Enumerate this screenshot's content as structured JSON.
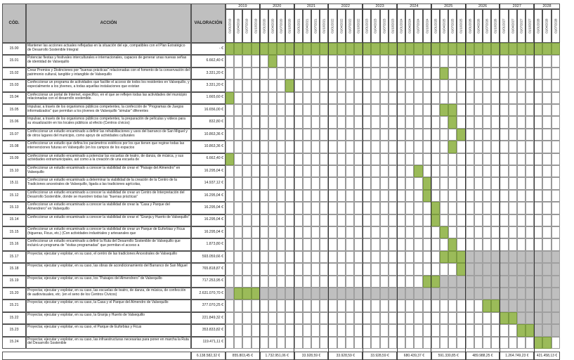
{
  "headers": {
    "code": "CÓD.",
    "action": "ACCIÓN",
    "valuation": "VALORACIÓN"
  },
  "years": [
    "2019",
    "2020",
    "2021",
    "2022",
    "2023",
    "2024",
    "2025",
    "2026",
    "2027",
    "2028"
  ],
  "dates": [
    "01/01/2019",
    "01/04/2019",
    "01/07/2019",
    "01/10/2019",
    "01/01/2020",
    "01/04/2020",
    "01/07/2020",
    "01/10/2020",
    "01/01/2021",
    "01/04/2021",
    "01/07/2021",
    "01/10/2021",
    "01/01/2022",
    "01/04/2022",
    "01/07/2022",
    "01/10/2022",
    "01/01/2023",
    "01/04/2023",
    "01/07/2023",
    "01/10/2023",
    "01/01/2024",
    "01/04/2024",
    "01/07/2024",
    "01/10/2024",
    "01/01/2025",
    "01/04/2025",
    "01/07/2025",
    "01/10/2025",
    "01/01/2026",
    "01/04/2026",
    "01/07/2026",
    "01/10/2026",
    "01/01/2027",
    "01/04/2027",
    "01/07/2027",
    "01/10/2027",
    "01/01/2028",
    "01/04/2028",
    "01/07/2028"
  ],
  "colors": {
    "green": "#9bbb59",
    "grey": "#bfbfbf",
    "header": "#bfbfbf"
  },
  "rows": [
    {
      "code": "15.00",
      "action": "Mantener las acciones actuales reflejadas en la situación del eje, compatibles con el Plan Estratégico de Desarrollo Sostenible Integral",
      "value": "- €",
      "green": [
        0,
        1,
        2,
        3,
        4,
        5,
        6,
        7,
        8,
        9,
        10,
        11,
        12,
        13,
        14,
        15,
        16,
        17,
        18,
        19,
        20,
        21,
        22,
        23,
        24,
        25,
        26,
        27,
        28,
        29,
        30,
        31,
        32,
        33,
        34,
        35,
        36,
        37,
        38
      ],
      "grey": []
    },
    {
      "code": "15.01",
      "action": "Potenciar fiestas y festivales interculturales e internacionales, capaces de generar unas nuevas señas de identidad de Valsequillo",
      "value": "6.662,40 €",
      "green": [
        5
      ],
      "grey": []
    },
    {
      "code": "15.02",
      "action": "Crear Premios y Distinciones por \"buenas prácticas\" relacionadas con el fomento de la conservación del patrimonio cultural, tangible y intangible de Valsequillo",
      "value": "3.331,20 €",
      "green": [
        25
      ],
      "grey": []
    },
    {
      "code": "15.03",
      "action": "Confeccionar un programa de actividades que facilite el acceso de todos los residentes en Valsequillo, y especialmente a los jóvenes, a todas aquellas instalaciones que existan",
      "value": "3.331,20 €",
      "green": [
        7
      ],
      "grey": []
    },
    {
      "code": "15.04",
      "action": "Confeccionar un portal de Internet, específico, en el que se reflejen todas las actividades del municipio relacionadas con el desarrollo sostenible.",
      "value": "1.665,60 €",
      "green": [
        0
      ],
      "grey": []
    },
    {
      "code": "15.05",
      "action": "Impulsar, a través de los organismos públicos competentes, la confección de \"Programas de Juegos informatizados\" que permitan a los jóvenes de Valsequillo \"simular\" diferentes",
      "value": "16.656,00 €",
      "green": [
        25,
        26
      ],
      "grey": []
    },
    {
      "code": "15.06",
      "action": "Impulsar, a través de los organismos públicos competentes, la preparación de películas y videos para su visualización en los locales públicos al efecto (Centros cívicos)",
      "value": "832,80 €",
      "green": [
        26
      ],
      "grey": []
    },
    {
      "code": "15.07",
      "action": "Confeccionar un estudio encaminado a definir las rehabilitaciones y usos del barranco de San Miguel y de otros lugares del municipio, como apoyo de actividades culturales",
      "value": "10.863,36 €",
      "green": [
        27
      ],
      "grey": []
    },
    {
      "code": "15.08",
      "action": "Confeccionar un estudio que defina los parámetros estéticos por los que tienen que regirse todas las intervenciones futuras en Valsequillo (en los campos de los espacios",
      "value": "10.863,36 €",
      "green": [
        26
      ],
      "grey": []
    },
    {
      "code": "15.09",
      "action": "Confeccionar un estudio encaminado a potenciar las escuelas de teatro, de danza, de música, y sus actividades extramunicipales, así como a la creación de una escuela de",
      "value": "6.662,40 €",
      "green": [
        0
      ],
      "grey": []
    },
    {
      "code": "15.10",
      "action": "Confeccionar un estudio encaminado a conocer la viabilidad de crear el \"Paisaje del Almendro\" en Valsequillo",
      "value": "16.295,04 €",
      "green": [
        22
      ],
      "grey": []
    },
    {
      "code": "15.11",
      "action": "Confeccionar un estudio encaminado a determinar la viabilidad de la creación de la Centro de la Tradiciones ancestrales de Valsequillo, ligada a las tradiciones agrícolas,",
      "value": "14.937,12 €",
      "green": [
        23
      ],
      "grey": []
    },
    {
      "code": "15.12",
      "action": "Confeccionar un estudio encaminado a conocer la viabilidad de crear un Centro de Interpretación del Desarrollo Sostenible, donde se muestren todas las \"buenas prácticas\"",
      "value": "16.295,04 €",
      "green": [
        23
      ],
      "grey": []
    },
    {
      "code": "15.13",
      "action": "Confeccionar un estudio encaminado a conocer la viabilidad de crear la \"Casa y Parque del Almendrero\" en Valsequillo",
      "value": "16.295,04 €",
      "green": [
        24
      ],
      "grey": []
    },
    {
      "code": "15.14",
      "action": "Confeccionar un estudio encaminado a conocer la viabilidad de crear el \"Granja y Huerto de Valsequillo\"",
      "value": "16.295,04 €",
      "green": [
        24
      ],
      "grey": []
    },
    {
      "code": "15.15",
      "action": "Confeccionar un estudio encaminado a conocer la viabilidad de crear un Parque de Euforbias y Ficus (higueras, Ficus, etc.) (Con actividades industriales y artesanales que",
      "value": "16.295,04 €",
      "green": [
        25
      ],
      "grey": []
    },
    {
      "code": "15.16",
      "action": "Confeccionar un estudio encaminado a definir la Ruta del Desarrollo Sostenible de Valsequillo que incluirá un programa de \"visitas programadas\" que permitan el acceso a",
      "value": "1.873,80 €",
      "green": [
        26
      ],
      "grey": []
    },
    {
      "code": "15.17",
      "action": "Proyectar, ejecutar y explotar, en su caso, el centro de las tradiciones Ancestrales de Valsequillo",
      "value": "593.059,66 €",
      "green": [
        25,
        26,
        27
      ],
      "grey": [
        28,
        29,
        30,
        31,
        32,
        33,
        34,
        35,
        36,
        37,
        38
      ]
    },
    {
      "code": "15.18",
      "action": "Proyectar, ejecutar y explotar, en su caso, las obras de acondicionamiento del Barranco de San Miguel",
      "value": "765.818,87 €",
      "green": [
        27
      ],
      "grey": [
        28,
        29,
        30,
        31,
        32,
        33,
        34,
        35,
        36,
        37,
        38
      ]
    },
    {
      "code": "15.19",
      "action": "Proyectar, ejecutar y explotar, en su caso, los \"Paisajes del Almendrero\" de Valsequillo",
      "value": "717.253,95 €",
      "green": [
        23,
        24
      ],
      "grey": [
        25,
        26,
        27,
        28,
        29,
        30,
        31,
        32,
        33,
        34,
        35,
        36,
        37,
        38
      ]
    },
    {
      "code": "15.20",
      "action": "Proyectar, ejecutar y explotar, en su caso, las escuelas de teatro, de danza, de música, de confección de audiovisuales, etc. (en el seno de los Centros Cívicos)",
      "value": "2.631.070,70 €",
      "green": [
        1,
        2,
        3
      ],
      "grey": [
        0,
        4,
        5,
        6,
        7,
        8,
        9,
        10,
        11,
        12,
        13,
        14,
        15,
        16,
        17,
        18,
        19,
        20,
        21,
        22,
        23,
        24,
        25,
        26,
        27,
        28,
        29,
        30,
        31,
        32,
        33,
        34,
        35,
        36,
        37,
        38
      ]
    },
    {
      "code": "15.21",
      "action": "Proyectar, ejecutar y explotar, en su caso, la Casa y el Parque del Almendro de Valsequillo",
      "value": "377.070,25 €",
      "green": [
        30,
        31
      ],
      "grey": [
        32,
        33,
        34,
        35,
        36,
        37,
        38
      ]
    },
    {
      "code": "15.22",
      "action": "Proyectar, ejecutar y explotar, en su caso, la Granja y Huerto de Valsequillo",
      "value": "221.849,32 €",
      "green": [
        32,
        33
      ],
      "grey": [
        34,
        35,
        36,
        37,
        38
      ]
    },
    {
      "code": "15.23",
      "action": "Proyectar, ejecutar y explotar, en su caso, el Parque de Euforbias y Ficus",
      "value": "353.833,82 €",
      "green": [
        34,
        35
      ],
      "grey": [
        36,
        37,
        38
      ]
    },
    {
      "code": "15.24",
      "action": "Proyectar, ejecutar y explotar, en su caso, las infraestructuras necesarias para poner en marcha la Ruta del Desarrollo Sostenible",
      "value": "119.471,11 €",
      "green": [
        36,
        37
      ],
      "grey": []
    }
  ],
  "totals": {
    "grand": "6.138.582,32 €",
    "years": [
      "855.803,45 €",
      "1.732.951,06 €",
      "33.928,59 €",
      "33.928,59 €",
      "33.928,59 €",
      "680.439,37 €",
      "591.330,85 €",
      "489.988,25 €",
      "1.264.749,23 €",
      "421.458,13 €"
    ]
  }
}
